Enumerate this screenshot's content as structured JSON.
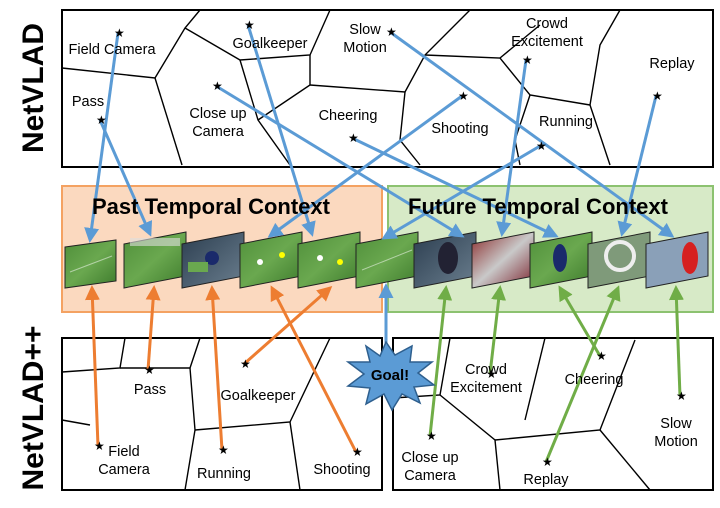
{
  "side_labels": {
    "top": "NetVLAD",
    "bottom": "NetVLAD++"
  },
  "context": {
    "past": "Past Temporal Context",
    "future": "Future Temporal Context"
  },
  "goal_label": "Goal!",
  "colors": {
    "blue": "#5b9bd5",
    "orange": "#ed7d31",
    "green": "#70ad47",
    "past_fill": "#fbd9bf",
    "past_border": "#f4a262",
    "future_fill": "#d7eac7",
    "future_border": "#8cc270"
  },
  "top_clusters": {
    "field_camera": "Field Camera",
    "goalkeeper": "Goalkeeper",
    "slow_motion": [
      "Slow",
      "Motion"
    ],
    "crowd_excitement": [
      "Crowd",
      "Excitement"
    ],
    "replay": "Replay",
    "pass": "Pass",
    "close_up_camera": [
      "Close up",
      "Camera"
    ],
    "cheering": "Cheering",
    "shooting": "Shooting",
    "running": "Running"
  },
  "bottom_past_clusters": {
    "pass": "Pass",
    "goalkeeper": "Goalkeeper",
    "field_camera": [
      "Field",
      "Camera"
    ],
    "running": "Running",
    "shooting": "Shooting"
  },
  "bottom_future_clusters": {
    "crowd_excitement": [
      "Crowd",
      "Excitement"
    ],
    "cheering": "Cheering",
    "slow_motion": [
      "Slow",
      "Motion"
    ],
    "close_up_camera": [
      "Close up",
      "Camera"
    ],
    "replay": "Replay"
  }
}
